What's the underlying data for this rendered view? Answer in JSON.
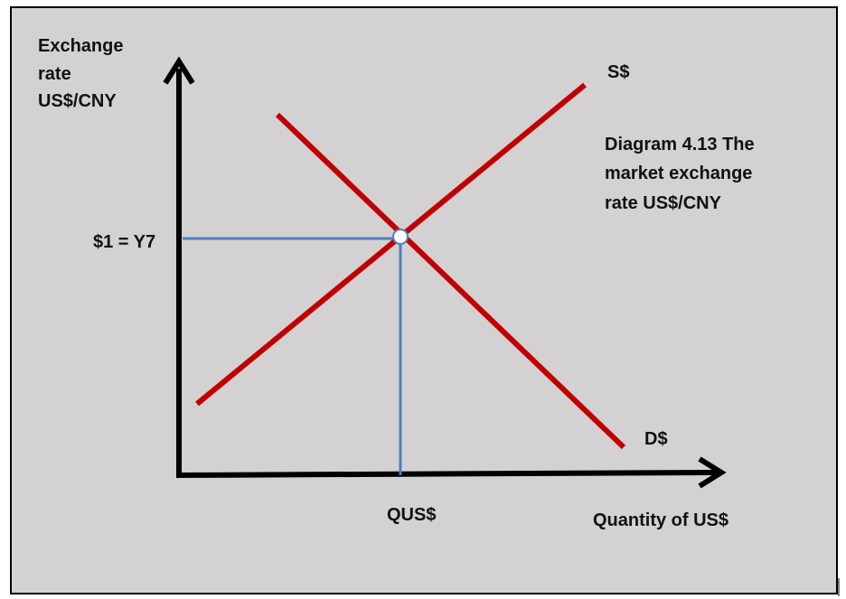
{
  "y_axis_label": [
    "Exchange",
    "rate",
    "US$/CNY"
  ],
  "supply_label": "S$",
  "demand_label": "D$",
  "caption": [
    "Diagram 4.13 The",
    "market exchange",
    "rate US$/CNY"
  ],
  "equilibrium_price_label": "$1 = Y7",
  "equilibrium_quantity_label": "QUS$",
  "x_axis_label": "Quantity of US$"
}
